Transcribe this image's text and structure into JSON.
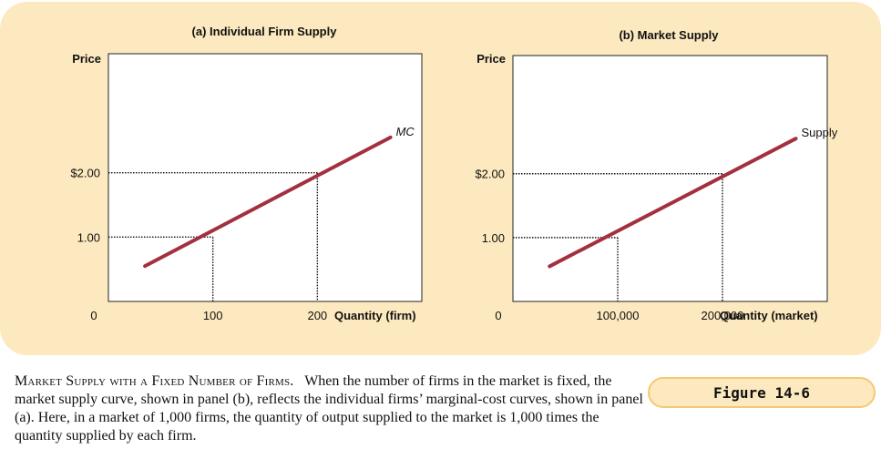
{
  "chart_data": [
    {
      "type": "line",
      "title": "(a) Individual Firm Supply",
      "ylabel": "Price",
      "xlabel": "Quantity (firm)",
      "origin_label": "0",
      "xticks": [
        {
          "value": 100,
          "label": "100"
        },
        {
          "value": 200,
          "label": "200"
        }
      ],
      "yticks": [
        {
          "value": 1,
          "label": "1.00"
        },
        {
          "value": 2,
          "label": "$2.00"
        }
      ],
      "series": [
        {
          "name": "MC",
          "x": [
            35,
            270
          ],
          "y": [
            0.55,
            2.55
          ]
        }
      ],
      "dotted_guides": [
        {
          "x": 100,
          "y": 1
        },
        {
          "x": 200,
          "y": 2
        }
      ],
      "xlim": [
        0,
        300
      ],
      "ylim": [
        0,
        3.85
      ],
      "line_color": "#a3303f"
    },
    {
      "type": "line",
      "title": "(b) Market Supply",
      "ylabel": "Price",
      "xlabel": "Quantity (market)",
      "origin_label": "0",
      "xticks": [
        {
          "value": 100000,
          "label": "100,000"
        },
        {
          "value": 200000,
          "label": "200,000"
        }
      ],
      "yticks": [
        {
          "value": 1,
          "label": "1.00"
        },
        {
          "value": 2,
          "label": "$2.00"
        }
      ],
      "series": [
        {
          "name": "Supply",
          "x": [
            35000,
            270000
          ],
          "y": [
            0.55,
            2.55
          ]
        }
      ],
      "dotted_guides": [
        {
          "x": 100000,
          "y": 1
        },
        {
          "x": 200000,
          "y": 2
        }
      ],
      "xlim": [
        0,
        300000
      ],
      "ylim": [
        0,
        3.85
      ],
      "line_color": "#a3303f"
    }
  ],
  "caption": {
    "heading": "Market Supply with a Fixed Number of Firms.",
    "body": "When the number of firms in the market is fixed, the market supply curve, shown in panel (b), reflects the individual firms’ marginal-cost curves, shown in panel (a). Here, in a market of 1,000 firms, the quantity of output supplied to the market is 1,000 times the quantity supplied by each firm."
  },
  "figure_label": "Figure 14-6"
}
